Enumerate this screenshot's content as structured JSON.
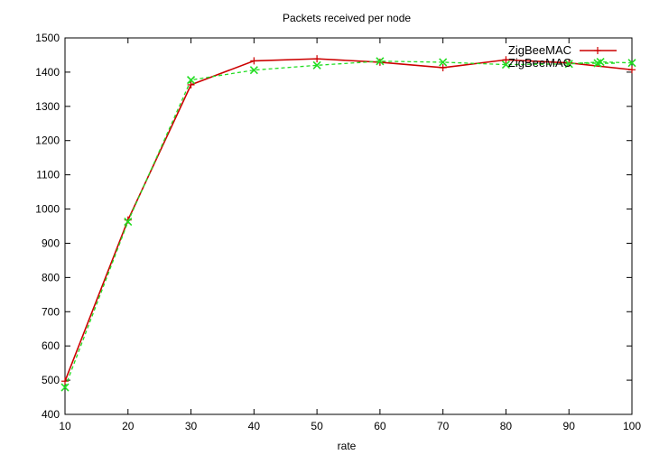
{
  "chart_data": {
    "type": "line",
    "title": "Packets received per node",
    "xlabel": "rate",
    "ylabel": "",
    "xlim": [
      10,
      100
    ],
    "ylim": [
      400,
      1500
    ],
    "xticks": [
      10,
      20,
      30,
      40,
      50,
      60,
      70,
      80,
      90,
      100
    ],
    "yticks": [
      400,
      500,
      600,
      700,
      800,
      900,
      1000,
      1100,
      1200,
      1300,
      1400,
      1500
    ],
    "grid": false,
    "legend_position": "top-right",
    "series": [
      {
        "name": "ZigBeeMAC",
        "color": "#cc0000",
        "marker": "plus",
        "dash": "solid",
        "x": [
          10,
          20,
          30,
          40,
          50,
          60,
          70,
          80,
          90,
          100
        ],
        "y": [
          497,
          968,
          1363,
          1433,
          1439,
          1429,
          1413,
          1436,
          1427,
          1407
        ]
      },
      {
        "name": "ZigBeeMAC",
        "color": "#22dd22",
        "marker": "cross",
        "dash": "dashed",
        "x": [
          10,
          20,
          30,
          40,
          50,
          60,
          70,
          80,
          90,
          95,
          100
        ],
        "y": [
          479,
          963,
          1377,
          1406,
          1420,
          1432,
          1429,
          1422,
          1424,
          1430,
          1427
        ]
      }
    ]
  }
}
